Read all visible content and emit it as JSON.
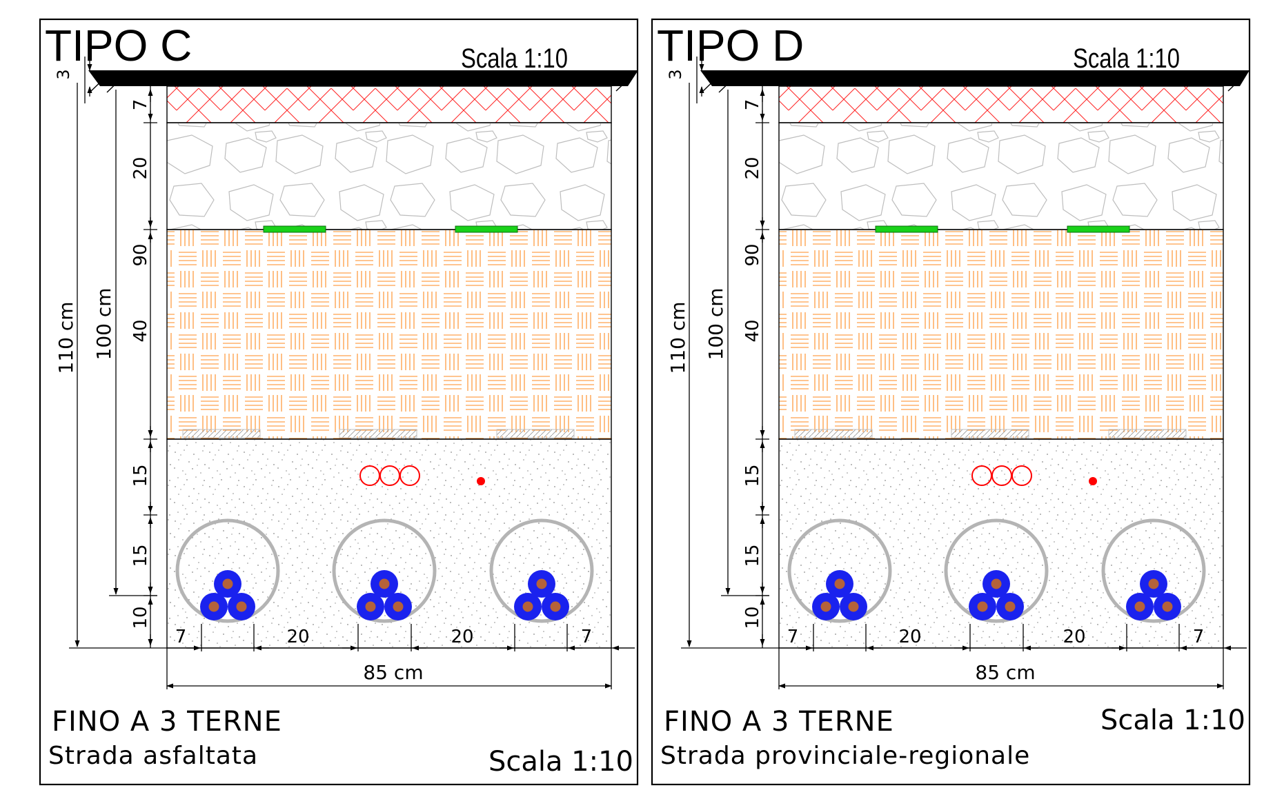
{
  "palette": {
    "asphalt_hatch": "#ff2a2a",
    "stone_outline": "#bdbdbd",
    "sand_hatch": "#ff8a1f",
    "tape_green": "#19d219",
    "concrete_dots": "#8a8a8a",
    "pipe_ring": "#b4b4b4",
    "cable_blue": "#1a22ee",
    "cable_core": "#b5623a",
    "signal_red": "#ff0000",
    "slab_grey": "#d6d6d6",
    "line": "#000000"
  },
  "panels": [
    {
      "title": "TIPO C",
      "scale_top": "Scala 1:10",
      "dims_left": {
        "d3": "3",
        "d7": "7",
        "d20": "20",
        "d90": "90",
        "d40": "40",
        "d15a": "15",
        "d15b": "15",
        "d10": "10",
        "total_110": "110 cm",
        "total_100": "100 cm"
      },
      "dims_bottom": [
        "7",
        "20",
        "20",
        "7"
      ],
      "width_label": "85 cm",
      "caption_line1": "FINO A 3 TERNE",
      "caption_line2": "Strada asfaltata",
      "scale_bottom": "Scala 1:10"
    },
    {
      "title": "TIPO D",
      "scale_top": "Scala 1:10",
      "dims_left": {
        "d3": "3",
        "d7": "7",
        "d20": "20",
        "d90": "90",
        "d40": "40",
        "d15a": "15",
        "d15b": "15",
        "d10": "10",
        "total_110": "110 cm",
        "total_100": "100 cm"
      },
      "dims_bottom": [
        "7",
        "20",
        "20",
        "7"
      ],
      "width_label": "85 cm",
      "caption_line1": "FINO A 3 TERNE",
      "caption_line2": "Strada provinciale-regionale",
      "scale_bottom": "Scala 1:10"
    }
  ]
}
